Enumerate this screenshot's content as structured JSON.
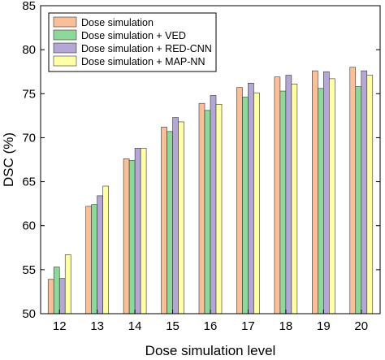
{
  "chart_data": {
    "type": "bar",
    "xlabel": "Dose simulation level",
    "ylabel": "DSC (%)",
    "ylim": [
      50,
      85
    ],
    "yticks": [
      50,
      55,
      60,
      65,
      70,
      75,
      80,
      85
    ],
    "categories": [
      "12",
      "13",
      "14",
      "15",
      "16",
      "17",
      "18",
      "19",
      "20"
    ],
    "legend_position": "top-left",
    "grid": false,
    "series": [
      {
        "name": "Dose simulation",
        "color": "#F9BF99",
        "values": [
          53.9,
          62.2,
          67.6,
          71.2,
          73.9,
          75.7,
          76.9,
          77.6,
          78.0
        ]
      },
      {
        "name": "Dose simulation + VED",
        "color": "#8ED99A",
        "values": [
          55.3,
          62.4,
          67.4,
          70.7,
          73.1,
          74.6,
          75.3,
          75.6,
          75.8
        ]
      },
      {
        "name": "Dose simulation + RED-CNN",
        "color": "#B4A7D6",
        "values": [
          54.0,
          63.4,
          68.8,
          72.3,
          74.8,
          76.2,
          77.1,
          77.5,
          77.6
        ]
      },
      {
        "name": "Dose simulation + MAP-NN",
        "color": "#FFFFA6",
        "values": [
          56.7,
          64.5,
          68.8,
          71.8,
          73.8,
          75.1,
          76.1,
          76.7,
          77.1
        ]
      }
    ]
  }
}
